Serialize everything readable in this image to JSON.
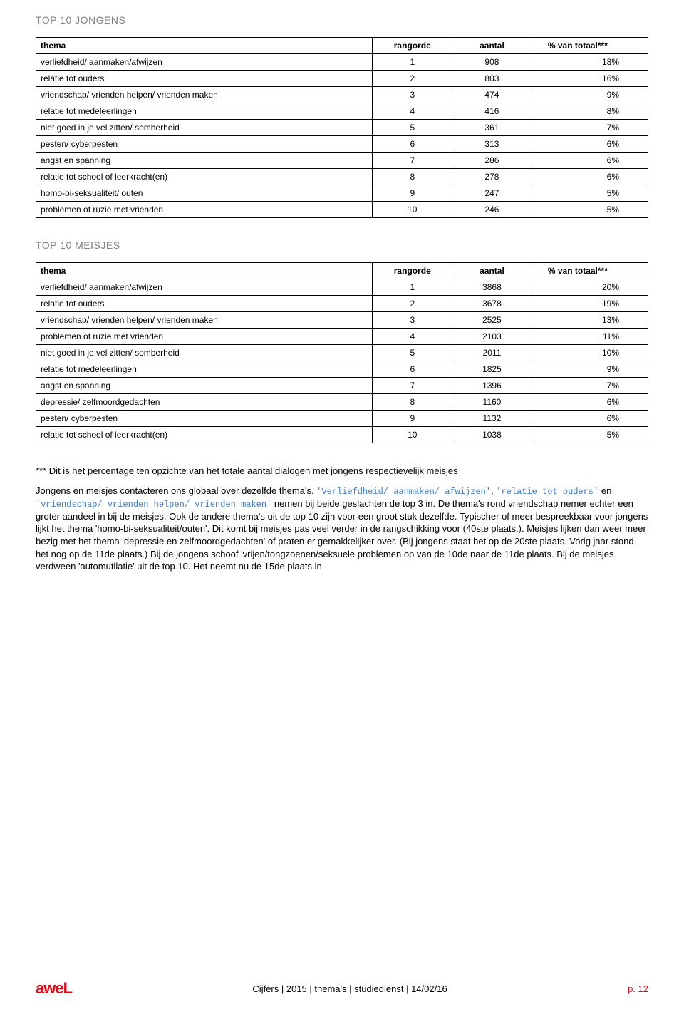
{
  "section1": {
    "title": "TOP 10 JONGENS",
    "headers": {
      "thema": "thema",
      "rangorde": "rangorde",
      "aantal": "aantal",
      "pct": "% van totaal***"
    },
    "rows": [
      {
        "thema": "verliefdheid/ aanmaken/afwijzen",
        "rang": "1",
        "aantal": "908",
        "pct": "18%"
      },
      {
        "thema": "relatie tot ouders",
        "rang": "2",
        "aantal": "803",
        "pct": "16%"
      },
      {
        "thema": "vriendschap/ vrienden helpen/ vrienden maken",
        "rang": "3",
        "aantal": "474",
        "pct": "9%"
      },
      {
        "thema": "relatie tot medeleerlingen",
        "rang": "4",
        "aantal": "416",
        "pct": "8%"
      },
      {
        "thema": "niet goed in je vel zitten/ somberheid",
        "rang": "5",
        "aantal": "361",
        "pct": "7%"
      },
      {
        "thema": "pesten/ cyberpesten",
        "rang": "6",
        "aantal": "313",
        "pct": "6%"
      },
      {
        "thema": "angst en spanning",
        "rang": "7",
        "aantal": "286",
        "pct": "6%"
      },
      {
        "thema": "relatie tot school of leerkracht(en)",
        "rang": "8",
        "aantal": "278",
        "pct": "6%"
      },
      {
        "thema": "homo-bi-seksualiteit/ outen",
        "rang": "9",
        "aantal": "247",
        "pct": "5%"
      },
      {
        "thema": "problemen of ruzie met vrienden",
        "rang": "10",
        "aantal": "246",
        "pct": "5%"
      }
    ]
  },
  "section2": {
    "title": "TOP 10 MEISJES",
    "headers": {
      "thema": "thema",
      "rangorde": "rangorde",
      "aantal": "aantal",
      "pct": "% van totaal***"
    },
    "rows": [
      {
        "thema": "verliefdheid/ aanmaken/afwijzen",
        "rang": "1",
        "aantal": "3868",
        "pct": "20%"
      },
      {
        "thema": "relatie tot ouders",
        "rang": "2",
        "aantal": "3678",
        "pct": "19%"
      },
      {
        "thema": "vriendschap/ vrienden helpen/ vrienden maken",
        "rang": "3",
        "aantal": "2525",
        "pct": "13%"
      },
      {
        "thema": "problemen of ruzie met vrienden",
        "rang": "4",
        "aantal": "2103",
        "pct": "11%"
      },
      {
        "thema": "niet goed in je vel zitten/ somberheid",
        "rang": "5",
        "aantal": "2011",
        "pct": "10%"
      },
      {
        "thema": "relatie tot medeleerlingen",
        "rang": "6",
        "aantal": "1825",
        "pct": "9%"
      },
      {
        "thema": "angst en spanning",
        "rang": "7",
        "aantal": "1396",
        "pct": "7%"
      },
      {
        "thema": "depressie/ zelfmoordgedachten",
        "rang": "8",
        "aantal": "1160",
        "pct": "6%"
      },
      {
        "thema": "pesten/ cyberpesten",
        "rang": "9",
        "aantal": "1132",
        "pct": "6%"
      },
      {
        "thema": "relatie tot school of leerkracht(en)",
        "rang": "10",
        "aantal": "1038",
        "pct": "5%"
      }
    ]
  },
  "notes": {
    "n1": "*** Dit is het percentage ten opzichte van het totale aantal dialogen met jongens respectievelijk meisjes",
    "n2a": "Jongens en meisjes contacteren ons globaal over dezelfde thema's. ",
    "n2b": "'Verliefdheid/ aanmaken/ afwijzen'",
    "n2c": ", ",
    "n2d": "'relatie tot ouders'",
    "n2e": " en ",
    "n2f": "'vriendschap/ vrienden helpen/ vrienden maken'",
    "n2g": " nemen bij beide geslachten de top 3 in. De thema's rond vriendschap nemer echter een groter aandeel in bij de meisjes. Ook de andere thema's uit de top 10 zijn voor een groot stuk dezelfde. Typischer of meer bespreekbaar voor jongens lijkt het thema 'homo-bi-seksualiteit/outen'. Dit komt bij meisjes pas veel verder in de rangschikking voor (40ste plaats.). Meisjes lijken dan weer meer bezig met het thema 'depressie en zelfmoordgedachten' of praten er gemakkelijker over. (Bij jongens staat het op de 20ste plaats. Vorig jaar stond het nog op de 11de plaats.) Bij de jongens schoof 'vrijen/tongzoenen/seksuele problemen op van de 10de naar de 11de plaats. Bij de meisjes verdween 'automutilatie' uit de top 10. Het neemt nu de 15de plaats in."
  },
  "footer": {
    "logo": "aweL",
    "center": "Cijfers | 2015 | thema's | studiedienst | 14/02/16",
    "page": "p. 12"
  }
}
